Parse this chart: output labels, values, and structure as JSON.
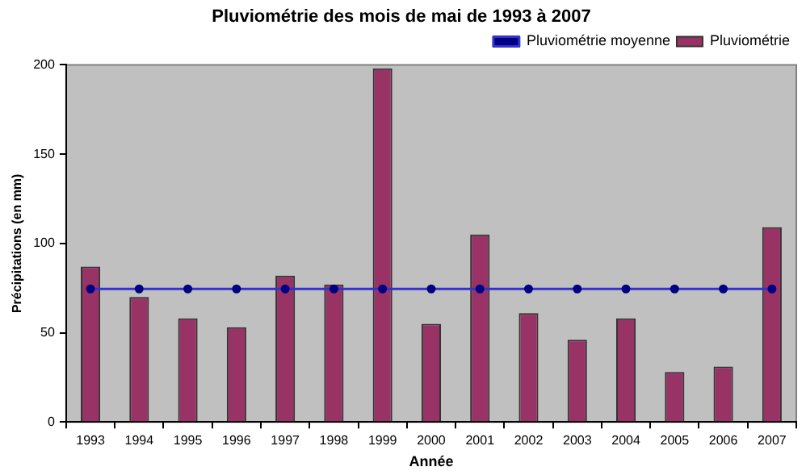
{
  "chart_data": {
    "type": "bar",
    "title": "Pluviométrie des mois de mai de 1993 à 2007",
    "xlabel": "Année",
    "ylabel": "Précipitations (en mm)",
    "categories": [
      "1993",
      "1994",
      "1995",
      "1996",
      "1997",
      "1998",
      "1999",
      "2000",
      "2001",
      "2002",
      "2003",
      "2004",
      "2005",
      "2006",
      "2007"
    ],
    "series": [
      {
        "name": "Pluviométrie",
        "color": "#993366",
        "values": [
          87,
          70,
          58,
          53,
          82,
          77,
          198,
          55,
          105,
          61,
          46,
          58,
          28,
          31,
          109
        ]
      },
      {
        "name": "Pluviométrie moyenne",
        "type": "line",
        "color": "#3333cc",
        "values": [
          74.5,
          74.5,
          74.5,
          74.5,
          74.5,
          74.5,
          74.5,
          74.5,
          74.5,
          74.5,
          74.5,
          74.5,
          74.5,
          74.5,
          74.5
        ]
      }
    ],
    "ylim": [
      0,
      200
    ],
    "yticks": [
      0,
      50,
      100,
      150,
      200
    ],
    "grid": false,
    "legend": "top right",
    "marker": "circle"
  }
}
